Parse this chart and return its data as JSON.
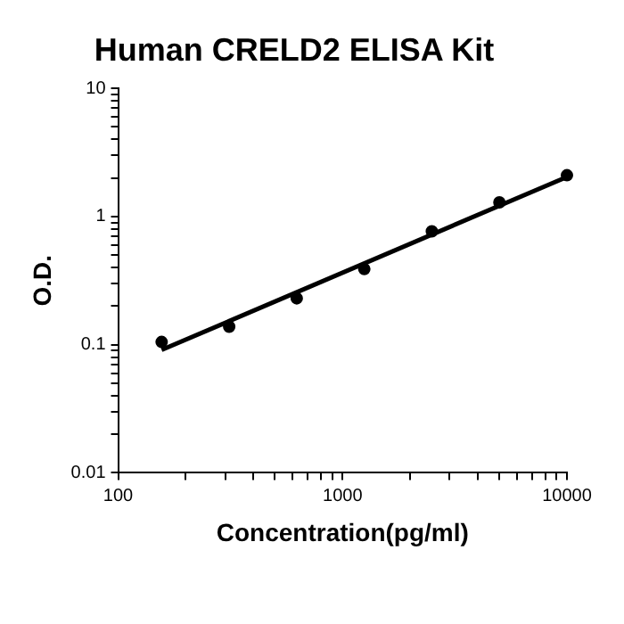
{
  "chart_data": {
    "type": "scatter",
    "title": "Human CRELD2 ELISA Kit",
    "xlabel": "Concentration(pg/ml)",
    "ylabel": "O.D.",
    "log": "xy",
    "marker": "circle",
    "grid": false,
    "legend": false,
    "series": [
      {
        "type": "scatter",
        "color": "#000000",
        "x": [
          156.25,
          312.5,
          625,
          1250,
          2500,
          5000,
          10000
        ],
        "values": [
          0.105,
          0.138,
          0.23,
          0.389,
          0.766,
          1.29,
          2.1
        ]
      },
      {
        "type": "line",
        "marker": "none",
        "color": "#000000",
        "x": [
          156.25,
          10000
        ],
        "values": [
          0.091,
          2.04
        ]
      }
    ],
    "xlim": [
      100,
      10000
    ],
    "ylim": [
      0.01,
      10
    ],
    "xticks": [
      100,
      {
        "value": 200,
        "label": null
      },
      {
        "value": 300,
        "label": null
      },
      {
        "value": 400,
        "label": null
      },
      {
        "value": 500,
        "label": null
      },
      {
        "value": 600,
        "label": null
      },
      {
        "value": 700,
        "label": null
      },
      {
        "value": 800,
        "label": null
      },
      {
        "value": 900,
        "label": null
      },
      1000,
      {
        "value": 2000,
        "label": null
      },
      {
        "value": 3000,
        "label": null
      },
      {
        "value": 4000,
        "label": null
      },
      {
        "value": 5000,
        "label": null
      },
      {
        "value": 6000,
        "label": null
      },
      {
        "value": 7000,
        "label": null
      },
      {
        "value": 8000,
        "label": null
      },
      {
        "value": 9000,
        "label": null
      },
      10000
    ],
    "yticks": [
      0.01,
      {
        "value": 0.02,
        "label": null
      },
      {
        "value": 0.03,
        "label": null
      },
      {
        "value": 0.04,
        "label": null
      },
      {
        "value": 0.05,
        "label": null
      },
      {
        "value": 0.06,
        "label": null
      },
      {
        "value": 0.07,
        "label": null
      },
      {
        "value": 0.08,
        "label": null
      },
      {
        "value": 0.09,
        "label": null
      },
      0.1,
      {
        "value": 0.2,
        "label": null
      },
      {
        "value": 0.3,
        "label": null
      },
      {
        "value": 0.4,
        "label": null
      },
      {
        "value": 0.5,
        "label": null
      },
      {
        "value": 0.6,
        "label": null
      },
      {
        "value": 0.7,
        "label": null
      },
      {
        "value": 0.8,
        "label": null
      },
      {
        "value": 0.9,
        "label": null
      },
      1,
      {
        "value": 2,
        "label": null
      },
      {
        "value": 3,
        "label": null
      },
      {
        "value": 4,
        "label": null
      },
      {
        "value": 5,
        "label": null
      },
      {
        "value": 6,
        "label": null
      },
      {
        "value": 7,
        "label": null
      },
      {
        "value": 8,
        "label": null
      },
      {
        "value": 9,
        "label": null
      },
      10
    ]
  }
}
